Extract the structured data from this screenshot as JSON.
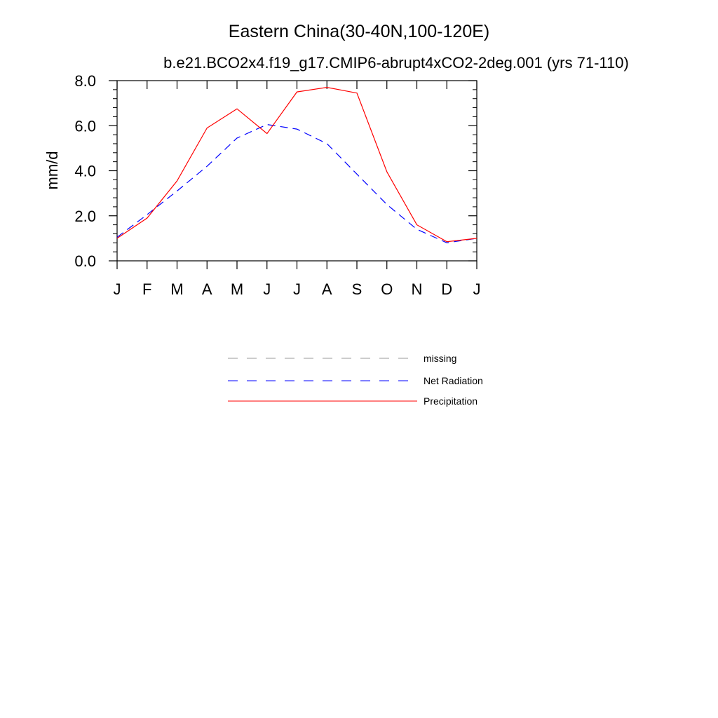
{
  "chart_data": {
    "type": "line",
    "title": "Eastern China(30-40N,100-120E)",
    "subtitle": "b.e21.BCO2x4.f19_g17.CMIP6-abrupt4xCO2-2deg.001 (yrs 71-110)",
    "xlabel": "",
    "ylabel": "mm/d",
    "categories": [
      "J",
      "F",
      "M",
      "A",
      "M",
      "J",
      "J",
      "A",
      "S",
      "O",
      "N",
      "D",
      "J"
    ],
    "ylim": [
      0,
      8
    ],
    "yticks": [
      "0.0",
      "2.0",
      "4.0",
      "6.0",
      "8.0"
    ],
    "ytick_values": [
      0,
      2,
      4,
      6,
      8
    ],
    "y_minor_step": 0.4,
    "series": [
      {
        "name": "Net Radiation",
        "color": "#0000ff",
        "dash": "dashed",
        "values": [
          1.05,
          2.05,
          3.1,
          4.2,
          5.45,
          6.05,
          5.85,
          5.2,
          3.85,
          2.5,
          1.4,
          0.8,
          1.0
        ]
      },
      {
        "name": "Precipitation",
        "color": "#ff0000",
        "dash": "solid",
        "values": [
          1.0,
          1.9,
          3.55,
          5.9,
          6.75,
          5.65,
          7.5,
          7.7,
          7.45,
          3.95,
          1.6,
          0.85,
          1.0
        ]
      }
    ],
    "legend": {
      "placement": "below",
      "items": [
        {
          "label": "missing",
          "color": "#999999",
          "dash": "dashed"
        },
        {
          "label": "Net Radiation",
          "color": "#0000ff",
          "dash": "dashed"
        },
        {
          "label": "Precipitation",
          "color": "#ff0000",
          "dash": "solid"
        }
      ]
    }
  }
}
